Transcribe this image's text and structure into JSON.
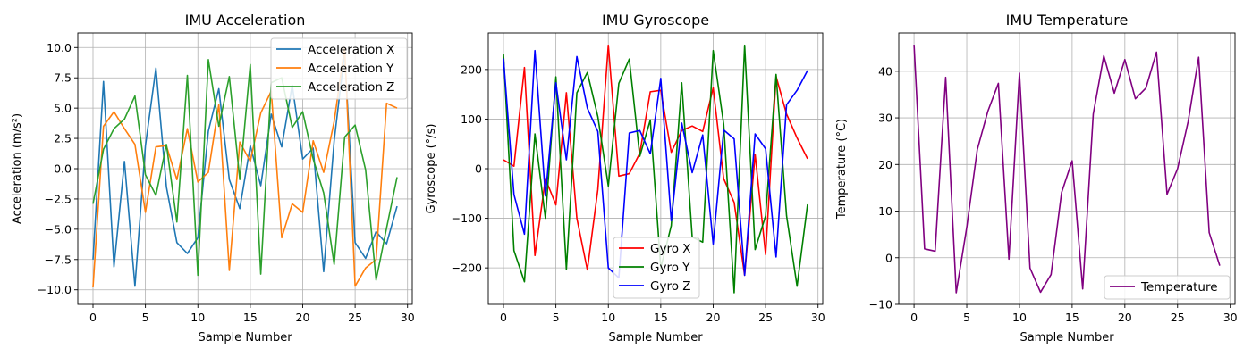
{
  "chart_data": [
    {
      "type": "line",
      "title": "IMU Acceleration",
      "xlabel": "Sample Number",
      "ylabel": "Acceleration (m/s²)",
      "xlim": [
        -1.45,
        30.45
      ],
      "ylim": [
        -11.2,
        11.2
      ],
      "xticks": [
        0,
        5,
        10,
        15,
        20,
        25,
        30
      ],
      "yticks": [
        -10.0,
        -7.5,
        -5.0,
        -2.5,
        0.0,
        2.5,
        5.0,
        7.5,
        10.0
      ],
      "ytick_labels": [
        "−10.0",
        "−7.5",
        "−5.0",
        "−2.5",
        "0.0",
        "2.5",
        "5.0",
        "7.5",
        "10.0"
      ],
      "grid": true,
      "legend_position": "top-right",
      "x": [
        0,
        1,
        2,
        3,
        4,
        5,
        6,
        7,
        8,
        9,
        10,
        11,
        12,
        13,
        14,
        15,
        16,
        17,
        18,
        19,
        20,
        21,
        22,
        23,
        24,
        25,
        26,
        27,
        28,
        29
      ],
      "series": [
        {
          "name": "Acceleration X",
          "color": "#1f77b4",
          "values": [
            -7.5,
            7.2,
            -8.1,
            0.6,
            -9.7,
            1.9,
            8.3,
            -1.5,
            -6.1,
            -7.0,
            -5.7,
            3.1,
            6.6,
            -0.9,
            -3.3,
            1.9,
            -1.4,
            4.5,
            1.8,
            6.9,
            0.8,
            1.7,
            -8.5,
            2.3,
            9.6,
            -6.1,
            -7.4,
            -5.2,
            -6.2,
            -3.1
          ]
        },
        {
          "name": "Acceleration Y",
          "color": "#ff7f0e",
          "values": [
            -9.8,
            3.5,
            4.7,
            3.3,
            2.0,
            -3.6,
            1.8,
            1.9,
            -0.9,
            3.3,
            -1.1,
            -0.3,
            5.3,
            -8.4,
            2.2,
            0.6,
            4.6,
            6.4,
            -5.7,
            -2.9,
            -3.6,
            2.3,
            -0.3,
            3.9,
            10.0,
            -9.7,
            -8.2,
            -7.5,
            5.4,
            5.0
          ]
        },
        {
          "name": "Acceleration Z",
          "color": "#2ca02c",
          "values": [
            -2.9,
            1.6,
            3.3,
            4.1,
            6.0,
            -0.5,
            -2.2,
            2.0,
            -4.4,
            7.7,
            -8.8,
            9.0,
            3.5,
            7.6,
            -0.9,
            8.6,
            -8.7,
            7.1,
            7.5,
            3.4,
            4.7,
            0.8,
            -2.0,
            -7.9,
            2.6,
            3.6,
            -0.1,
            -9.2,
            -4.9,
            -0.7
          ]
        }
      ]
    },
    {
      "type": "line",
      "title": "IMU Gyroscope",
      "xlabel": "Sample Number",
      "ylabel": "Gyroscope (°/s)",
      "xlim": [
        -1.45,
        30.45
      ],
      "ylim": [
        -273.5,
        273.5
      ],
      "xticks": [
        0,
        5,
        10,
        15,
        20,
        25,
        30
      ],
      "yticks": [
        -200,
        -100,
        0,
        100,
        200
      ],
      "ytick_labels": [
        "−200",
        "−100",
        "0",
        "100",
        "200"
      ],
      "grid": true,
      "legend_position": "bottom-center",
      "x": [
        0,
        1,
        2,
        3,
        4,
        5,
        6,
        7,
        8,
        9,
        10,
        11,
        12,
        13,
        14,
        15,
        16,
        17,
        18,
        19,
        20,
        21,
        22,
        23,
        24,
        25,
        26,
        27,
        28,
        29
      ],
      "series": [
        {
          "name": "Gyro X",
          "color": "#ff0000",
          "values": [
            18,
            5,
            204,
            -175,
            -20,
            -73,
            153,
            -100,
            -204,
            -42,
            249,
            -15,
            -10,
            31,
            155,
            158,
            33,
            77,
            86,
            75,
            163,
            -20,
            -68,
            -215,
            29,
            -173,
            186,
            110,
            62,
            20
          ]
        },
        {
          "name": "Gyro Y",
          "color": "#008000",
          "values": [
            231,
            -165,
            -228,
            70,
            -100,
            185,
            -203,
            153,
            194,
            105,
            -35,
            172,
            221,
            25,
            98,
            -200,
            -115,
            173,
            -138,
            -148,
            238,
            90,
            -250,
            249,
            -163,
            -95,
            190,
            -95,
            -237,
            -72
          ]
        },
        {
          "name": "Gyro Z",
          "color": "#0000ff",
          "values": [
            222,
            -52,
            -132,
            238,
            -55,
            173,
            18,
            226,
            122,
            75,
            -200,
            -220,
            72,
            77,
            30,
            182,
            -105,
            92,
            -8,
            68,
            -152,
            78,
            60,
            -215,
            70,
            40,
            -178,
            129,
            158,
            198
          ]
        }
      ]
    },
    {
      "type": "line",
      "title": "IMU Temperature",
      "xlabel": "Sample Number",
      "ylabel": "Temperature (°C)",
      "xlim": [
        -1.45,
        30.45
      ],
      "ylim": [
        -10,
        48.2
      ],
      "xticks": [
        0,
        5,
        10,
        15,
        20,
        25,
        30
      ],
      "yticks": [
        -10,
        0,
        10,
        20,
        30,
        40
      ],
      "ytick_labels": [
        "−10",
        "0",
        "10",
        "20",
        "30",
        "40"
      ],
      "grid": true,
      "legend_position": "bottom-right",
      "x": [
        0,
        1,
        2,
        3,
        4,
        5,
        6,
        7,
        8,
        9,
        10,
        11,
        12,
        13,
        14,
        15,
        16,
        17,
        18,
        19,
        20,
        21,
        22,
        23,
        24,
        25,
        26,
        27,
        28,
        29
      ],
      "series": [
        {
          "name": "Temperature",
          "color": "#800080",
          "values": [
            45.7,
            1.9,
            1.4,
            38.7,
            -7.5,
            6.5,
            23.2,
            31.4,
            37.4,
            -0.3,
            39.6,
            -2.2,
            -7.4,
            -3.6,
            14.0,
            20.8,
            -6.7,
            30.8,
            43.3,
            35.3,
            42.5,
            34.1,
            36.4,
            44.1,
            13.6,
            19.1,
            29.2,
            43.0,
            5.4,
            -1.7
          ]
        }
      ]
    }
  ]
}
